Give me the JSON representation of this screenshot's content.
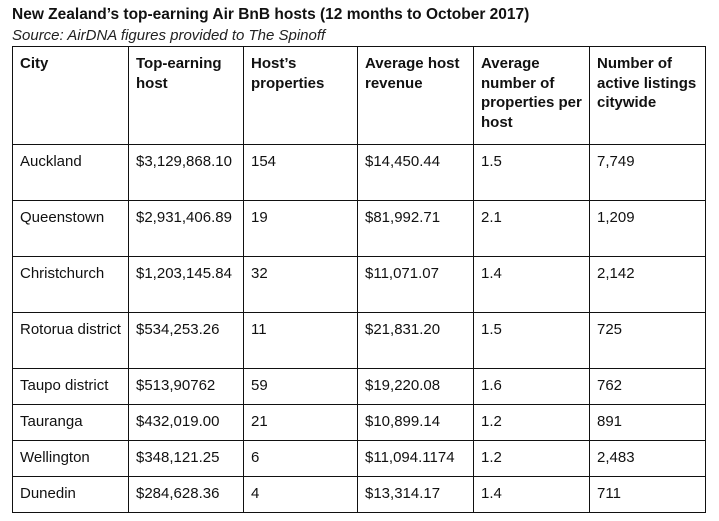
{
  "title": "New Zealand’s top-earning Air BnB hosts (12 months to October 2017)",
  "subtitle": "Source: AirDNA figures provided to The Spinoff",
  "columns": [
    "City",
    "Top-earning host",
    "Host’s properties",
    "Average host revenue",
    "Average number of properties per host",
    "Number of active listings citywide"
  ],
  "rows": [
    [
      "Auckland",
      "$3,129,868.10",
      "154",
      "$14,450.44",
      "1.5",
      "7,749"
    ],
    [
      "Queenstown",
      "$2,931,406.89",
      "19",
      "$81,992.71",
      "2.1",
      "1,209"
    ],
    [
      "Christchurch",
      "$1,203,145.84",
      "32",
      "$11,071.07",
      "1.4",
      "2,142"
    ],
    [
      "Rotorua district",
      "$534,253.26",
      "11",
      "$21,831.20",
      "1.5",
      "725"
    ],
    [
      "Taupo district",
      "$513,90762",
      "59",
      "$19,220.08",
      "1.6",
      "762"
    ],
    [
      "Tauranga",
      "$432,019.00",
      "21",
      "$10,899.14",
      "1.2",
      "891"
    ],
    [
      "Wellington",
      "$348,121.25",
      "6",
      "$11,094.1174",
      "1.2",
      "2,483"
    ],
    [
      "Dunedin",
      "$284,628.36",
      "4",
      "$13,314.17",
      "1.4",
      "711"
    ]
  ]
}
